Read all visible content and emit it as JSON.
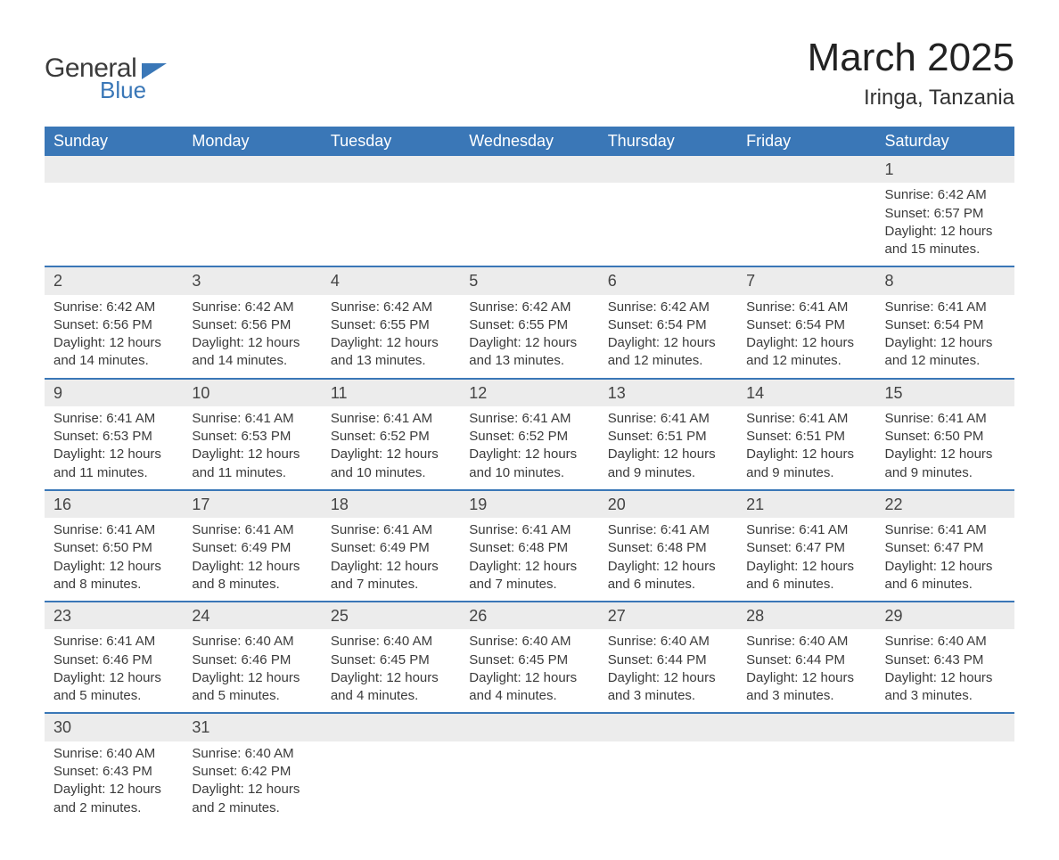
{
  "logo": {
    "line1": "General",
    "line2": "Blue"
  },
  "title": "March 2025",
  "location": "Iringa, Tanzania",
  "colors": {
    "header_bg": "#3a77b7",
    "header_text": "#ffffff",
    "daynum_bg": "#ececec",
    "row_border": "#3a77b7",
    "text": "#3b3b3b",
    "background": "#ffffff"
  },
  "typography": {
    "title_fontsize": 44,
    "location_fontsize": 24,
    "header_fontsize": 18,
    "daynum_fontsize": 18,
    "body_fontsize": 15
  },
  "weekdays": [
    "Sunday",
    "Monday",
    "Tuesday",
    "Wednesday",
    "Thursday",
    "Friday",
    "Saturday"
  ],
  "weeks": [
    [
      null,
      null,
      null,
      null,
      null,
      null,
      {
        "d": "1",
        "sr": "Sunrise: 6:42 AM",
        "ss": "Sunset: 6:57 PM",
        "dl1": "Daylight: 12 hours",
        "dl2": "and 15 minutes."
      }
    ],
    [
      {
        "d": "2",
        "sr": "Sunrise: 6:42 AM",
        "ss": "Sunset: 6:56 PM",
        "dl1": "Daylight: 12 hours",
        "dl2": "and 14 minutes."
      },
      {
        "d": "3",
        "sr": "Sunrise: 6:42 AM",
        "ss": "Sunset: 6:56 PM",
        "dl1": "Daylight: 12 hours",
        "dl2": "and 14 minutes."
      },
      {
        "d": "4",
        "sr": "Sunrise: 6:42 AM",
        "ss": "Sunset: 6:55 PM",
        "dl1": "Daylight: 12 hours",
        "dl2": "and 13 minutes."
      },
      {
        "d": "5",
        "sr": "Sunrise: 6:42 AM",
        "ss": "Sunset: 6:55 PM",
        "dl1": "Daylight: 12 hours",
        "dl2": "and 13 minutes."
      },
      {
        "d": "6",
        "sr": "Sunrise: 6:42 AM",
        "ss": "Sunset: 6:54 PM",
        "dl1": "Daylight: 12 hours",
        "dl2": "and 12 minutes."
      },
      {
        "d": "7",
        "sr": "Sunrise: 6:41 AM",
        "ss": "Sunset: 6:54 PM",
        "dl1": "Daylight: 12 hours",
        "dl2": "and 12 minutes."
      },
      {
        "d": "8",
        "sr": "Sunrise: 6:41 AM",
        "ss": "Sunset: 6:54 PM",
        "dl1": "Daylight: 12 hours",
        "dl2": "and 12 minutes."
      }
    ],
    [
      {
        "d": "9",
        "sr": "Sunrise: 6:41 AM",
        "ss": "Sunset: 6:53 PM",
        "dl1": "Daylight: 12 hours",
        "dl2": "and 11 minutes."
      },
      {
        "d": "10",
        "sr": "Sunrise: 6:41 AM",
        "ss": "Sunset: 6:53 PM",
        "dl1": "Daylight: 12 hours",
        "dl2": "and 11 minutes."
      },
      {
        "d": "11",
        "sr": "Sunrise: 6:41 AM",
        "ss": "Sunset: 6:52 PM",
        "dl1": "Daylight: 12 hours",
        "dl2": "and 10 minutes."
      },
      {
        "d": "12",
        "sr": "Sunrise: 6:41 AM",
        "ss": "Sunset: 6:52 PM",
        "dl1": "Daylight: 12 hours",
        "dl2": "and 10 minutes."
      },
      {
        "d": "13",
        "sr": "Sunrise: 6:41 AM",
        "ss": "Sunset: 6:51 PM",
        "dl1": "Daylight: 12 hours",
        "dl2": "and 9 minutes."
      },
      {
        "d": "14",
        "sr": "Sunrise: 6:41 AM",
        "ss": "Sunset: 6:51 PM",
        "dl1": "Daylight: 12 hours",
        "dl2": "and 9 minutes."
      },
      {
        "d": "15",
        "sr": "Sunrise: 6:41 AM",
        "ss": "Sunset: 6:50 PM",
        "dl1": "Daylight: 12 hours",
        "dl2": "and 9 minutes."
      }
    ],
    [
      {
        "d": "16",
        "sr": "Sunrise: 6:41 AM",
        "ss": "Sunset: 6:50 PM",
        "dl1": "Daylight: 12 hours",
        "dl2": "and 8 minutes."
      },
      {
        "d": "17",
        "sr": "Sunrise: 6:41 AM",
        "ss": "Sunset: 6:49 PM",
        "dl1": "Daylight: 12 hours",
        "dl2": "and 8 minutes."
      },
      {
        "d": "18",
        "sr": "Sunrise: 6:41 AM",
        "ss": "Sunset: 6:49 PM",
        "dl1": "Daylight: 12 hours",
        "dl2": "and 7 minutes."
      },
      {
        "d": "19",
        "sr": "Sunrise: 6:41 AM",
        "ss": "Sunset: 6:48 PM",
        "dl1": "Daylight: 12 hours",
        "dl2": "and 7 minutes."
      },
      {
        "d": "20",
        "sr": "Sunrise: 6:41 AM",
        "ss": "Sunset: 6:48 PM",
        "dl1": "Daylight: 12 hours",
        "dl2": "and 6 minutes."
      },
      {
        "d": "21",
        "sr": "Sunrise: 6:41 AM",
        "ss": "Sunset: 6:47 PM",
        "dl1": "Daylight: 12 hours",
        "dl2": "and 6 minutes."
      },
      {
        "d": "22",
        "sr": "Sunrise: 6:41 AM",
        "ss": "Sunset: 6:47 PM",
        "dl1": "Daylight: 12 hours",
        "dl2": "and 6 minutes."
      }
    ],
    [
      {
        "d": "23",
        "sr": "Sunrise: 6:41 AM",
        "ss": "Sunset: 6:46 PM",
        "dl1": "Daylight: 12 hours",
        "dl2": "and 5 minutes."
      },
      {
        "d": "24",
        "sr": "Sunrise: 6:40 AM",
        "ss": "Sunset: 6:46 PM",
        "dl1": "Daylight: 12 hours",
        "dl2": "and 5 minutes."
      },
      {
        "d": "25",
        "sr": "Sunrise: 6:40 AM",
        "ss": "Sunset: 6:45 PM",
        "dl1": "Daylight: 12 hours",
        "dl2": "and 4 minutes."
      },
      {
        "d": "26",
        "sr": "Sunrise: 6:40 AM",
        "ss": "Sunset: 6:45 PM",
        "dl1": "Daylight: 12 hours",
        "dl2": "and 4 minutes."
      },
      {
        "d": "27",
        "sr": "Sunrise: 6:40 AM",
        "ss": "Sunset: 6:44 PM",
        "dl1": "Daylight: 12 hours",
        "dl2": "and 3 minutes."
      },
      {
        "d": "28",
        "sr": "Sunrise: 6:40 AM",
        "ss": "Sunset: 6:44 PM",
        "dl1": "Daylight: 12 hours",
        "dl2": "and 3 minutes."
      },
      {
        "d": "29",
        "sr": "Sunrise: 6:40 AM",
        "ss": "Sunset: 6:43 PM",
        "dl1": "Daylight: 12 hours",
        "dl2": "and 3 minutes."
      }
    ],
    [
      {
        "d": "30",
        "sr": "Sunrise: 6:40 AM",
        "ss": "Sunset: 6:43 PM",
        "dl1": "Daylight: 12 hours",
        "dl2": "and 2 minutes."
      },
      {
        "d": "31",
        "sr": "Sunrise: 6:40 AM",
        "ss": "Sunset: 6:42 PM",
        "dl1": "Daylight: 12 hours",
        "dl2": "and 2 minutes."
      },
      null,
      null,
      null,
      null,
      null
    ]
  ]
}
